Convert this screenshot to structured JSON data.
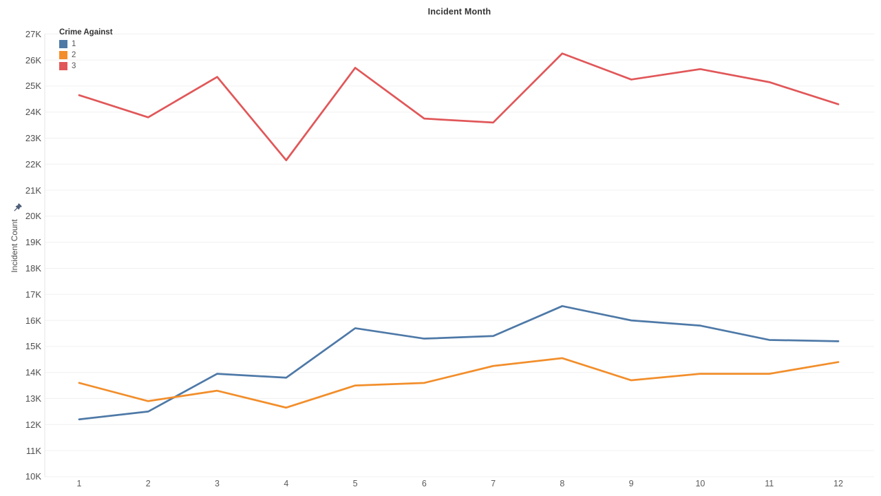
{
  "header": {
    "title": "Incident Month"
  },
  "legend": {
    "title": "Crime Against",
    "items": [
      {
        "label": "1",
        "color": "#4e79a7"
      },
      {
        "label": "2",
        "color": "#f28e2b"
      },
      {
        "label": "3",
        "color": "#e15759"
      }
    ]
  },
  "y_axis": {
    "label": "Incident Count",
    "icon": "pushpin-icon",
    "tick_labels": [
      "27K",
      "26K",
      "25K",
      "24K",
      "23K",
      "22K",
      "21K",
      "20K",
      "19K",
      "18K",
      "17K",
      "16K",
      "15K",
      "14K",
      "13K",
      "12K",
      "11K",
      "10K"
    ]
  },
  "x_axis": {
    "tick_labels": [
      "1",
      "2",
      "3",
      "4",
      "5",
      "6",
      "7",
      "8",
      "9",
      "10",
      "11",
      "12"
    ]
  },
  "chart_data": {
    "type": "line",
    "title": "Incident Month",
    "xlabel": "Incident Month",
    "ylabel": "Incident Count",
    "x": [
      1,
      2,
      3,
      4,
      5,
      6,
      7,
      8,
      9,
      10,
      11,
      12
    ],
    "series": [
      {
        "name": "1",
        "color": "#4e79a7",
        "values": [
          12200,
          12500,
          13950,
          13800,
          15700,
          15300,
          15400,
          16550,
          16000,
          15800,
          15250,
          15200
        ]
      },
      {
        "name": "2",
        "color": "#f28e2b",
        "values": [
          13600,
          12900,
          13300,
          12650,
          13500,
          13600,
          14250,
          14550,
          13700,
          13950,
          13950,
          14400
        ]
      },
      {
        "name": "3",
        "color": "#e15759",
        "values": [
          24650,
          23800,
          25350,
          22150,
          25700,
          23750,
          23600,
          26250,
          25250,
          25650,
          25150,
          24300
        ]
      }
    ],
    "ylim": [
      10000,
      27000
    ],
    "ytick_interval": 1000,
    "grid": "horizontal",
    "legend_title": "Crime Against",
    "legend_position": "top-left"
  },
  "colors": {
    "grid": "#f0f0f0",
    "axis_line": "#e6e6e6",
    "title_text": "#333333",
    "pin": "#4e5d78"
  }
}
